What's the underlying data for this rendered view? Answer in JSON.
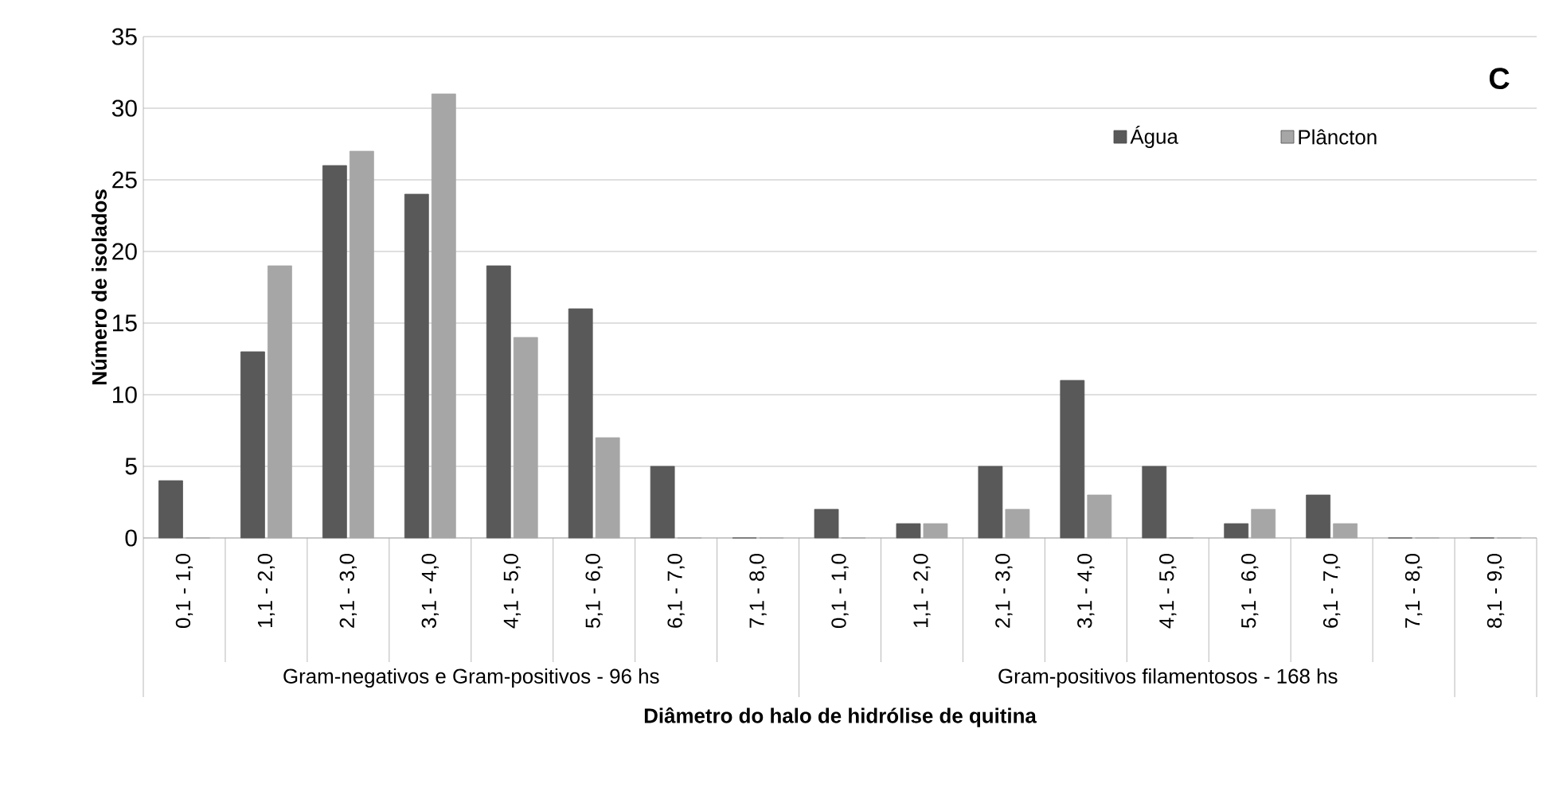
{
  "chart_data": {
    "type": "bar",
    "title": "C",
    "xlabel": "Diâmetro do halo de hidrólise de quitina",
    "ylabel": "Número de isolados",
    "categories": [
      "0,1 - 1,0",
      "1,1 - 2,0",
      "2,1 - 3,0",
      "3,1 - 4,0",
      "4,1 - 5,0",
      "5,1 - 6,0",
      "6,1 - 7,0",
      "7,1 - 8,0",
      "0,1 - 1,0",
      "1,1 - 2,0",
      "2,1 - 3,0",
      "3,1 - 4,0",
      "4,1 - 5,0",
      "5,1 - 6,0",
      "6,1 - 7,0",
      "7,1 - 8,0",
      "8,1 - 9,0"
    ],
    "series": [
      {
        "name": "Água",
        "color": "#595959",
        "values": [
          4,
          13,
          26,
          24,
          19,
          16,
          5,
          0,
          2,
          1,
          5,
          11,
          5,
          1,
          3,
          0,
          0
        ]
      },
      {
        "name": "Plâncton",
        "color": "#a6a6a6",
        "values": [
          0,
          19,
          27,
          31,
          14,
          7,
          0,
          0,
          0,
          1,
          2,
          3,
          0,
          2,
          1,
          0,
          0
        ]
      }
    ],
    "annotations": [
      "Gram-negativos e Gram-positivos - 96 hs",
      "Gram-positivos filamentosos - 168 hs"
    ],
    "ylim": [
      0,
      35
    ],
    "yticks": [
      0,
      5,
      10,
      15,
      20,
      25,
      30,
      35
    ],
    "grid": "y",
    "legend": "top right"
  }
}
